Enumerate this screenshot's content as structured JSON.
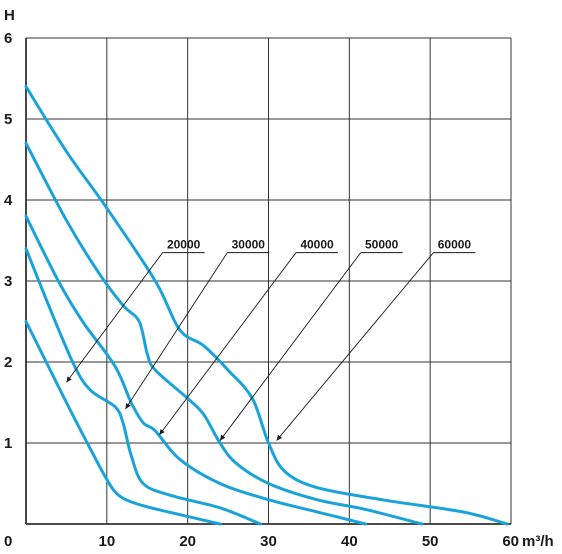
{
  "chart_data": {
    "type": "line",
    "ylabel": "H",
    "xlabel": "m³/h",
    "xlim": [
      0,
      60
    ],
    "ylim": [
      0,
      6
    ],
    "xticks": [
      "0",
      "10",
      "20",
      "30",
      "40",
      "50",
      "60"
    ],
    "yticks": [
      "1",
      "2",
      "3",
      "4",
      "5",
      "6"
    ],
    "grid": true,
    "colors": {
      "line": "#1aa3d9",
      "grid": "#333333"
    },
    "series": [
      {
        "name": "20000",
        "points": [
          [
            0,
            2.5
          ],
          [
            2.5,
            2.0
          ],
          [
            5,
            1.5
          ],
          [
            8,
            0.92
          ],
          [
            10,
            0.55
          ],
          [
            11.5,
            0.35
          ],
          [
            14,
            0.24
          ],
          [
            18,
            0.14
          ],
          [
            24,
            0.0
          ]
        ]
      },
      {
        "name": "30000",
        "points": [
          [
            0,
            3.4
          ],
          [
            3,
            2.65
          ],
          [
            6,
            1.95
          ],
          [
            8,
            1.65
          ],
          [
            11,
            1.45
          ],
          [
            12,
            1.25
          ],
          [
            13,
            0.85
          ],
          [
            14.5,
            0.5
          ],
          [
            18,
            0.35
          ],
          [
            24,
            0.2
          ],
          [
            29,
            0.0
          ]
        ]
      },
      {
        "name": "40000",
        "points": [
          [
            0,
            3.8
          ],
          [
            4,
            3.0
          ],
          [
            7,
            2.5
          ],
          [
            11,
            1.95
          ],
          [
            13,
            1.5
          ],
          [
            14.5,
            1.25
          ],
          [
            16,
            1.15
          ],
          [
            19,
            0.8
          ],
          [
            24,
            0.5
          ],
          [
            30,
            0.3
          ],
          [
            36,
            0.15
          ],
          [
            42,
            0.0
          ]
        ]
      },
      {
        "name": "50000",
        "points": [
          [
            0,
            4.7
          ],
          [
            5,
            3.75
          ],
          [
            9,
            3.1
          ],
          [
            12,
            2.7
          ],
          [
            14,
            2.5
          ],
          [
            15,
            2.1
          ],
          [
            16,
            1.9
          ],
          [
            20,
            1.55
          ],
          [
            22,
            1.35
          ],
          [
            24,
            1.0
          ],
          [
            26,
            0.75
          ],
          [
            30,
            0.5
          ],
          [
            36,
            0.3
          ],
          [
            42,
            0.18
          ],
          [
            49,
            0.0
          ]
        ]
      },
      {
        "name": "60000",
        "points": [
          [
            0,
            5.4
          ],
          [
            5,
            4.6
          ],
          [
            10,
            3.9
          ],
          [
            16,
            3.0
          ],
          [
            19,
            2.4
          ],
          [
            22,
            2.2
          ],
          [
            25,
            1.9
          ],
          [
            28,
            1.55
          ],
          [
            30,
            1.0
          ],
          [
            32,
            0.65
          ],
          [
            36,
            0.45
          ],
          [
            44,
            0.3
          ],
          [
            54,
            0.15
          ],
          [
            59.5,
            0.0
          ]
        ]
      }
    ],
    "annotations": [
      {
        "text": "20000",
        "label_x": 19.5,
        "label_y": 3.35,
        "target": [
          5,
          1.75
        ]
      },
      {
        "text": "30000",
        "label_x": 27.5,
        "label_y": 3.35,
        "target": [
          12.3,
          1.42
        ]
      },
      {
        "text": "40000",
        "label_x": 36,
        "label_y": 3.35,
        "target": [
          16.5,
          1.1
        ]
      },
      {
        "text": "50000",
        "label_x": 44,
        "label_y": 3.35,
        "target": [
          24,
          1.03
        ]
      },
      {
        "text": "60000",
        "label_x": 53,
        "label_y": 3.35,
        "target": [
          31,
          1.03
        ]
      }
    ]
  }
}
